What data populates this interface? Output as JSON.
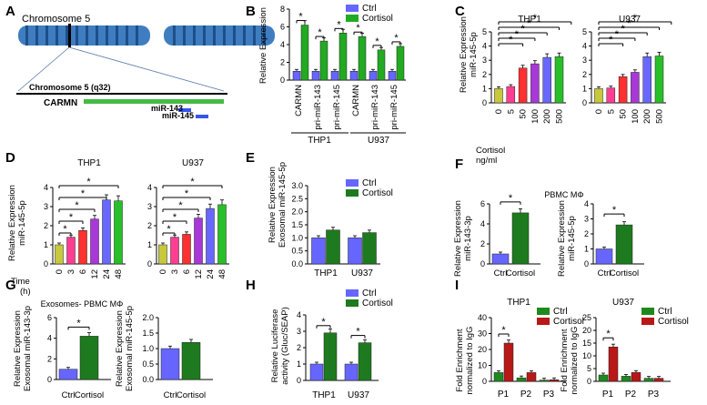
{
  "colors": {
    "ctrl": "#6666ff",
    "cortisol": "#22aa22",
    "cortisol_dark": "#1e7a1e",
    "cortisol_red": "#b81818",
    "ctrl_green": "#1e8a1e",
    "chrom": "#3f7dc0",
    "carmn": "#44bb44",
    "mir": "#3355ee",
    "dose": [
      "#c8c83c",
      "#ff3e92",
      "#ff3030",
      "#a838d8",
      "#6868ff",
      "#28c028"
    ]
  },
  "panelA": {
    "letter": "A",
    "chrom_title": "Chromosome 5",
    "region_label": "Chromosome 5 (q32)",
    "carmn": "CARMN",
    "mir143": "miR-143",
    "mir145": "miR-145"
  },
  "chart_data": [
    {
      "panel": "B",
      "type": "bar",
      "ylabel": "Relative Expression",
      "yticks": [
        "0",
        "2",
        "4",
        "6",
        "8"
      ],
      "ylim": [
        0,
        8
      ],
      "legend": [
        "Ctrl",
        "Cortisol"
      ],
      "categories": [
        "CARMN",
        "pri-miR-143",
        "pri-miR-145",
        "CARMN",
        "pri-miR-143",
        "pri-miR-145"
      ],
      "groups": [
        "THP1",
        "U937"
      ],
      "stars": [
        "*",
        "*",
        "*",
        "*",
        "*",
        "*"
      ],
      "series": [
        {
          "name": "Ctrl",
          "values": [
            1,
            1,
            1,
            1,
            1,
            1
          ]
        },
        {
          "name": "Cortisol",
          "values": [
            6.2,
            4.4,
            5.3,
            4.9,
            3.4,
            3.8
          ]
        }
      ]
    },
    {
      "panel": "C",
      "type": "bar",
      "ylabel": "Relative Expression\nmiR-145-5p",
      "xlabel": "Cortisol\nng/ml",
      "yticks": [
        "0",
        "1",
        "2",
        "3",
        "4",
        "5"
      ],
      "ylim": [
        0,
        5
      ],
      "charts": [
        {
          "title": "THP1",
          "categories": [
            "0",
            "5",
            "50",
            "100",
            "200",
            "500"
          ],
          "values": [
            1,
            1.15,
            2.45,
            2.75,
            3.2,
            3.25
          ]
        },
        {
          "title": "U937",
          "categories": [
            "0",
            "5",
            "50",
            "100",
            "200",
            "500"
          ],
          "values": [
            1,
            1.05,
            1.85,
            2.15,
            3.25,
            3.3
          ]
        }
      ]
    },
    {
      "panel": "D",
      "type": "bar",
      "ylabel": "Relative Expression\nmiR-145-5p",
      "xlabel": "Time\n(h)",
      "yticks": [
        "0",
        "1",
        "2",
        "3",
        "4"
      ],
      "ylim": [
        0,
        4
      ],
      "charts": [
        {
          "title": "THP1",
          "categories": [
            "0",
            "3",
            "6",
            "12",
            "24",
            "48"
          ],
          "values": [
            1,
            1.4,
            1.75,
            2.35,
            3.35,
            3.3
          ]
        },
        {
          "title": "U937",
          "categories": [
            "0",
            "3",
            "6",
            "12",
            "24",
            "48"
          ],
          "values": [
            1,
            1.4,
            1.55,
            2.4,
            2.9,
            3.1
          ]
        }
      ]
    },
    {
      "panel": "E",
      "type": "bar",
      "ylabel": "Relative Expression\nExosomal miR-145-5p",
      "yticks": [
        "0.0",
        "0.5",
        "1.0",
        "1.5",
        "2.0",
        "2.5",
        "3.0"
      ],
      "ylim": [
        0,
        3
      ],
      "legend": [
        "Ctrl",
        "Cortisol"
      ],
      "categories": [
        "THP1",
        "U937"
      ],
      "series": [
        {
          "name": "Ctrl",
          "values": [
            1,
            1
          ]
        },
        {
          "name": "Cortisol",
          "values": [
            1.3,
            1.2
          ]
        }
      ]
    },
    {
      "panel": "F",
      "type": "bar",
      "title": "PBMC MΦ",
      "charts": [
        {
          "ylabel": "Relative Expression\nmiR-143-3p",
          "yticks": [
            "0",
            "2",
            "4",
            "6"
          ],
          "ylim": [
            0,
            6
          ],
          "categories": [
            "Ctrl",
            "Cortisol"
          ],
          "values": [
            1,
            5.1
          ],
          "star": "*"
        },
        {
          "ylabel": "Relative Expression\nmiR-145-5p",
          "yticks": [
            "0",
            "1",
            "2",
            "3",
            "4"
          ],
          "ylim": [
            0,
            4
          ],
          "categories": [
            "Ctrl",
            "Cortisol"
          ],
          "values": [
            1,
            2.6
          ],
          "star": "*"
        }
      ]
    },
    {
      "panel": "G",
      "type": "bar",
      "title": "Exosomes- PBMC MΦ",
      "charts": [
        {
          "ylabel": "Relative Expression\nExosomal miR-143-3p",
          "yticks": [
            "0",
            "2",
            "4",
            "6"
          ],
          "ylim": [
            0,
            6
          ],
          "categories": [
            "Ctrl",
            "Cortisol"
          ],
          "values": [
            1,
            4.2
          ],
          "star": "*"
        },
        {
          "ylabel": "Relative Expression\nExosomal miR-145-5p",
          "yticks": [
            "0.0",
            "0.5",
            "1.0",
            "1.5",
            "2.0"
          ],
          "ylim": [
            0,
            2
          ],
          "categories": [
            "Ctrl",
            "Cortisol"
          ],
          "values": [
            1,
            1.2
          ],
          "star": ""
        }
      ]
    },
    {
      "panel": "H",
      "type": "bar",
      "ylabel": "Relative Luciferase\nactivity (Gluc/SEAP)",
      "yticks": [
        "0",
        "1",
        "2",
        "3",
        "4"
      ],
      "ylim": [
        0,
        4
      ],
      "legend": [
        "Ctrl",
        "Cortisol"
      ],
      "categories": [
        "THP1",
        "U937"
      ],
      "stars": [
        "*",
        "*"
      ],
      "series": [
        {
          "name": "Ctrl",
          "values": [
            1,
            1
          ]
        },
        {
          "name": "Cortisol",
          "values": [
            2.9,
            2.3
          ]
        }
      ]
    },
    {
      "panel": "I",
      "type": "bar",
      "ylabel": "Fold Enrichment\nnormalized to IgG",
      "legend": [
        "Ctrl",
        "Cortisol"
      ],
      "charts": [
        {
          "title": "THP1",
          "yticks": [
            "0",
            "10",
            "20",
            "30",
            "40"
          ],
          "ylim": [
            0,
            40
          ],
          "categories": [
            "P1",
            "P2",
            "P3"
          ],
          "series": [
            {
              "name": "Ctrl",
              "values": [
                5.5,
                2.2,
                0.8
              ]
            },
            {
              "name": "Cortisol",
              "values": [
                24,
                5.5,
                1.0
              ]
            }
          ],
          "star": "*"
        },
        {
          "title": "U937",
          "yticks": [
            "0",
            "5",
            "10",
            "15",
            "20",
            "25"
          ],
          "ylim": [
            0,
            25
          ],
          "categories": [
            "P1",
            "P2",
            "P3"
          ],
          "series": [
            {
              "name": "Ctrl",
              "values": [
                2.5,
                2.0,
                1.2
              ]
            },
            {
              "name": "Cortisol",
              "values": [
                13.5,
                3.5,
                1.2
              ]
            }
          ],
          "star": "*"
        }
      ]
    }
  ]
}
